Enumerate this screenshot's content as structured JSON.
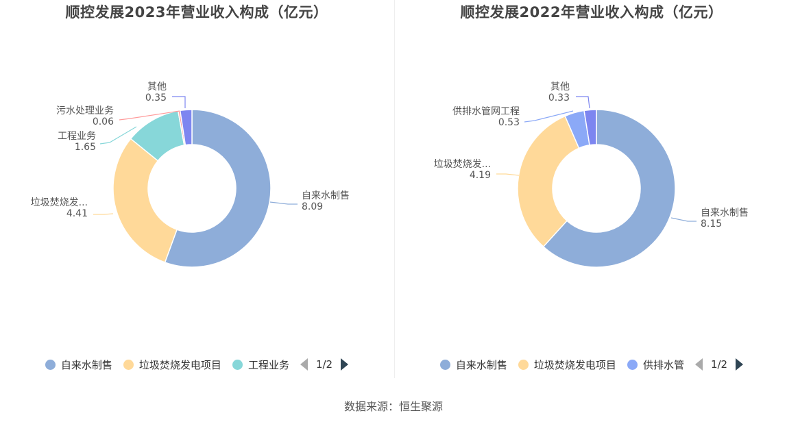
{
  "source": "数据来源：恒生聚源",
  "chart_data": [
    {
      "type": "pie",
      "title": "顺控发展2023年营业收入构成（亿元）",
      "colors": [
        "#8eadd9",
        "#ffd999",
        "#87d7d9",
        "#ff9a9a",
        "#7d86f0"
      ],
      "slices": [
        {
          "label": "自来水制售",
          "value": 8.09,
          "value_text": "8.09"
        },
        {
          "label": "垃圾焚烧发...",
          "value": 4.41,
          "value_text": "4.41"
        },
        {
          "label": "工程业务",
          "value": 1.65,
          "value_text": "1.65"
        },
        {
          "label": "污水处理业务",
          "value": 0.06,
          "value_text": "0.06"
        },
        {
          "label": "其他",
          "value": 0.35,
          "value_text": "0.35"
        }
      ],
      "legend": {
        "position": "bottom",
        "items": [
          "自来水制售",
          "垃圾焚烧发电项目",
          "工程业务"
        ],
        "page": "1/2"
      }
    },
    {
      "type": "pie",
      "title": "顺控发展2022年营业收入构成（亿元）",
      "colors": [
        "#8eadd9",
        "#ffd999",
        "#8ba9f7",
        "#7d86f0"
      ],
      "slices": [
        {
          "label": "自来水制售",
          "value": 8.15,
          "value_text": "8.15"
        },
        {
          "label": "垃圾焚烧发...",
          "value": 4.19,
          "value_text": "4.19"
        },
        {
          "label": "供排水管网工程",
          "value": 0.53,
          "value_text": "0.53"
        },
        {
          "label": "其他",
          "value": 0.33,
          "value_text": "0.33"
        }
      ],
      "legend": {
        "position": "bottom",
        "items": [
          "自来水制售",
          "垃圾焚烧发电项目",
          "供排水管"
        ],
        "page": "1/2"
      }
    }
  ]
}
